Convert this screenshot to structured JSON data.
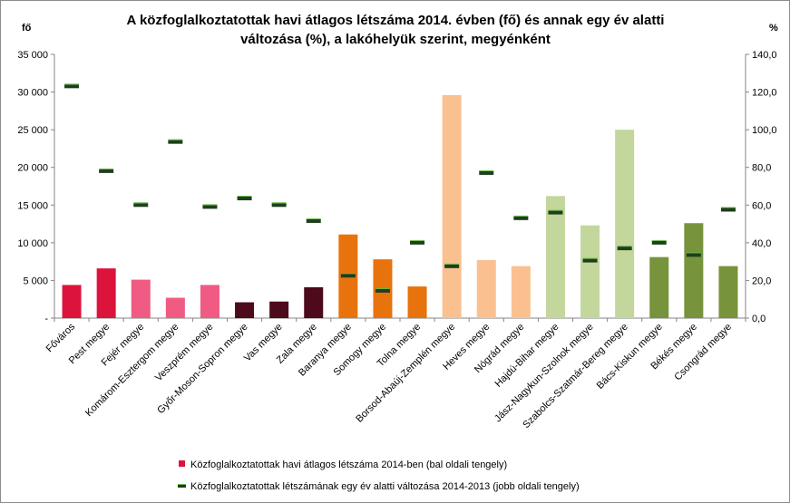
{
  "chart_data": {
    "type": "bar",
    "title_lines": [
      "A közfoglalkoztatottak havi átlagos létszáma 2014. évben (fő) és annak egy év alatti",
      "változása (%), a lakóhelyük szerint, megyénként"
    ],
    "y_left_unit": "fő",
    "y_right_unit": "%",
    "y_left_ticks": [
      "-",
      "5 000",
      "10 000",
      "15 000",
      "20 000",
      "25 000",
      "30 000",
      "35 000"
    ],
    "y_right_ticks": [
      "0,0",
      "20,0",
      "40,0",
      "60,0",
      "80,0",
      "100,0",
      "120,0",
      "140,0"
    ],
    "ylim_left": [
      0,
      35000
    ],
    "ylim_right": [
      0,
      140
    ],
    "grid": false,
    "legend_position": "bottom",
    "categories": [
      "Főváros",
      "Pest megye",
      "Fejér megye",
      "Komárom-Esztergom megye",
      "Veszprém megye",
      "Győr-Moson-Sopron megye",
      "Vas megye",
      "Zala megye",
      "Baranya megye",
      "Somogy megye",
      "Tolna megye",
      "Borsod-Abaúj-Zemplén megye",
      "Heves megye",
      "Nógrád megye",
      "Hajdú-Bihar megye",
      "Jász-Nagykun-Szolnok megye",
      "Szabolcs-Szatmár-Bereg megye",
      "Bács-Kiskun megye",
      "Békés megye",
      "Csongrád megye"
    ],
    "series": [
      {
        "name": "Közfoglalkoztatottak havi átlagos létszáma 2014-ben (bal oldali tengely)",
        "axis": "left",
        "values": [
          4400,
          6600,
          5100,
          2700,
          4400,
          2100,
          2200,
          4100,
          11100,
          7800,
          4200,
          29600,
          7700,
          6900,
          16200,
          12300,
          25000,
          8100,
          12600,
          6900
        ]
      },
      {
        "name": "Közfoglalkoztatottak létszámának egy év alatti változása 2014-2013 (jobb oldali tengely)",
        "axis": "right",
        "values": [
          123,
          78,
          60,
          93.5,
          59,
          63.5,
          60,
          51.5,
          22.5,
          14.5,
          40,
          27.5,
          77,
          53,
          56,
          30.5,
          37,
          40,
          33.5,
          57.5
        ]
      }
    ],
    "bar_colors": [
      "#dc143c",
      "#dc143c",
      "#ef5b82",
      "#ef5b82",
      "#ef5b82",
      "#4d0a1a",
      "#4d0a1a",
      "#4d0a1a",
      "#e8720c",
      "#e8720c",
      "#e8720c",
      "#fac090",
      "#fac090",
      "#fac090",
      "#c3d69b",
      "#c3d69b",
      "#c3d69b",
      "#77933c",
      "#77933c",
      "#77933c"
    ],
    "marker_color": "#1f3d1f",
    "marker_highlight": "#66bb44",
    "legend_bar_color": "#dc143c",
    "axis_color": "#868686"
  }
}
